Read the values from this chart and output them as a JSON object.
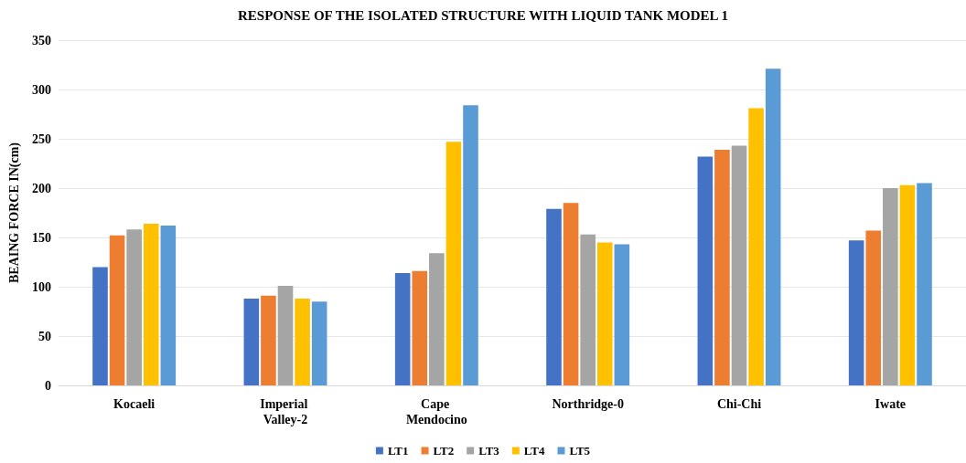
{
  "chart_data": {
    "type": "bar",
    "title": "RESPONSE OF THE ISOLATED STRUCTURE WITH LIQUID TANK MODEL 1",
    "ylabel": "BEAING FORCE IN(cm)",
    "categories": [
      "Kocaeli",
      "Imperial Valley-2",
      "Cape Mendocino",
      "Northridge-0",
      "Chi-Chi",
      "Iwate"
    ],
    "series": [
      {
        "name": "LT1",
        "color": "#4472c4",
        "values": [
          120,
          88,
          114,
          179,
          232,
          147
        ]
      },
      {
        "name": "LT2",
        "color": "#ed7d31",
        "values": [
          152,
          91,
          116,
          185,
          239,
          157
        ]
      },
      {
        "name": "LT3",
        "color": "#a5a5a5",
        "values": [
          158,
          101,
          134,
          153,
          243,
          200
        ]
      },
      {
        "name": "LT4",
        "color": "#ffc000",
        "values": [
          164,
          88,
          247,
          145,
          281,
          203
        ]
      },
      {
        "name": "LT5",
        "color": "#5b9bd5",
        "values": [
          162,
          85,
          284,
          143,
          321,
          205
        ]
      }
    ],
    "ylim": [
      0,
      350
    ],
    "yticks": [
      0,
      50,
      100,
      150,
      200,
      250,
      300,
      350
    ],
    "grid": "y",
    "legend": "bottom"
  }
}
